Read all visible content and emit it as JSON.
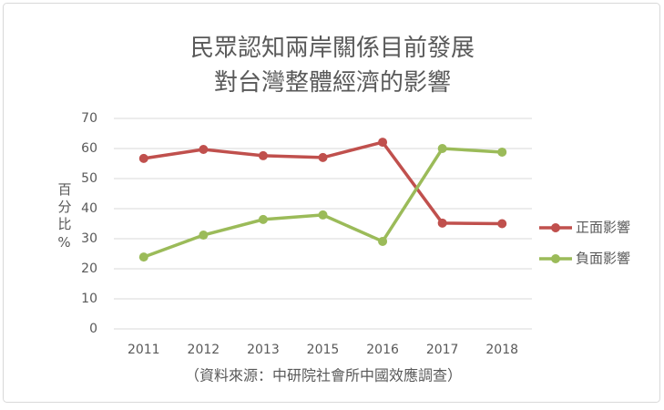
{
  "chart_data": {
    "type": "line",
    "title": [
      "民眾認知兩岸關係目前發展",
      "對台灣整體經濟的影響"
    ],
    "y_label": "百分比%",
    "note": "（資料來源：中研院社會所中國效應調查）",
    "categories": [
      "2011",
      "2012",
      "2013",
      "2015",
      "2016",
      "2017",
      "2018"
    ],
    "series": [
      {
        "name": "正面影響",
        "color": "#c0504d",
        "values": [
          56.7,
          59.7,
          57.6,
          57,
          62.1,
          35.2,
          35
        ]
      },
      {
        "name": "負面影響",
        "color": "#9bbb59",
        "values": [
          23.9,
          31.2,
          36.4,
          37.9,
          29.1,
          60,
          58.8
        ]
      }
    ],
    "ylim": [
      0,
      70
    ],
    "yticks": [
      0,
      10,
      20,
      30,
      40,
      50,
      60,
      70
    ],
    "grid": true,
    "legend": "right"
  }
}
